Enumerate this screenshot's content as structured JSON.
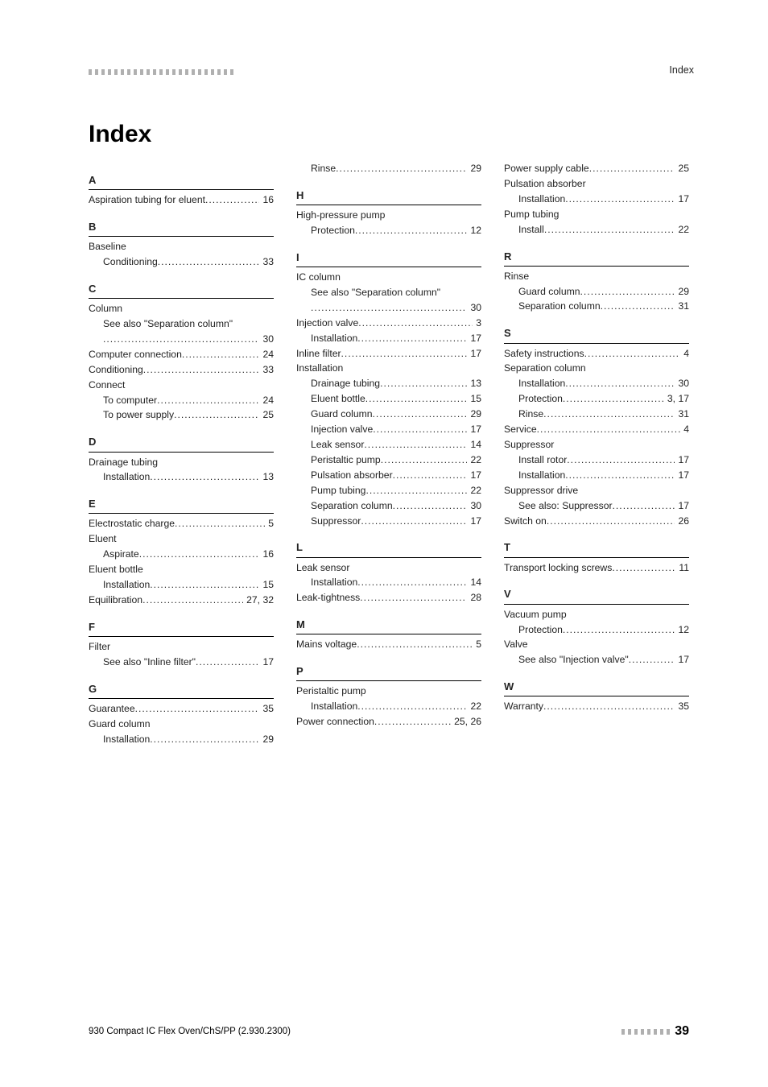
{
  "header_label": "Index",
  "title": "Index",
  "footer_left": "930 Compact IC Flex Oven/ChS/PP (2.930.2300)",
  "footer_page": "39",
  "columns": [
    [
      {
        "type": "letter",
        "text": "A"
      },
      {
        "type": "entry",
        "label": "Aspiration tubing for eluent",
        "page": "16"
      },
      {
        "type": "letter",
        "text": "B"
      },
      {
        "type": "entry",
        "label": "Baseline",
        "page": ""
      },
      {
        "type": "entry",
        "sub": true,
        "label": "Conditioning",
        "page": "33"
      },
      {
        "type": "letter",
        "text": "C"
      },
      {
        "type": "entry",
        "label": "Column",
        "page": ""
      },
      {
        "type": "entry",
        "sub": true,
        "label": "See also \"Separation column\"",
        "page": ""
      },
      {
        "type": "entry",
        "sub": true,
        "label": "",
        "page": "30"
      },
      {
        "type": "entry",
        "label": "Computer connection",
        "page": "24"
      },
      {
        "type": "entry",
        "label": "Conditioning",
        "page": "33"
      },
      {
        "type": "entry",
        "label": "Connect",
        "page": ""
      },
      {
        "type": "entry",
        "sub": true,
        "label": "To computer",
        "page": "24"
      },
      {
        "type": "entry",
        "sub": true,
        "label": "To power supply",
        "page": "25"
      },
      {
        "type": "letter",
        "text": "D"
      },
      {
        "type": "entry",
        "label": "Drainage tubing",
        "page": ""
      },
      {
        "type": "entry",
        "sub": true,
        "label": "Installation",
        "page": "13"
      },
      {
        "type": "letter",
        "text": "E"
      },
      {
        "type": "entry",
        "label": "Electrostatic charge",
        "page": "5"
      },
      {
        "type": "entry",
        "label": "Eluent",
        "page": ""
      },
      {
        "type": "entry",
        "sub": true,
        "label": "Aspirate",
        "page": "16"
      },
      {
        "type": "entry",
        "label": "Eluent bottle",
        "page": ""
      },
      {
        "type": "entry",
        "sub": true,
        "label": "Installation",
        "page": "15"
      },
      {
        "type": "entry",
        "label": "Equilibration",
        "page": "27, 32"
      },
      {
        "type": "letter",
        "text": "F"
      },
      {
        "type": "entry",
        "label": "Filter",
        "page": ""
      },
      {
        "type": "entry",
        "sub": true,
        "label": "See also \"Inline filter\"",
        "page": "17"
      },
      {
        "type": "letter",
        "text": "G"
      },
      {
        "type": "entry",
        "label": "Guarantee",
        "page": "35"
      },
      {
        "type": "entry",
        "label": "Guard column",
        "page": ""
      },
      {
        "type": "entry",
        "sub": true,
        "label": "Installation",
        "page": "29"
      }
    ],
    [
      {
        "type": "entry",
        "sub": true,
        "label": "Rinse",
        "page": "29"
      },
      {
        "type": "letter",
        "text": "H"
      },
      {
        "type": "entry",
        "label": "High-pressure pump",
        "page": ""
      },
      {
        "type": "entry",
        "sub": true,
        "label": "Protection",
        "page": "12"
      },
      {
        "type": "letter",
        "text": "I"
      },
      {
        "type": "entry",
        "label": "IC column",
        "page": ""
      },
      {
        "type": "entry",
        "sub": true,
        "label": "See also \"Separation column\"",
        "page": ""
      },
      {
        "type": "entry",
        "sub": true,
        "label": "",
        "page": "30"
      },
      {
        "type": "entry",
        "label": "Injection valve",
        "page": "3"
      },
      {
        "type": "entry",
        "sub": true,
        "label": "Installation",
        "page": "17"
      },
      {
        "type": "entry",
        "label": "Inline filter",
        "page": "17"
      },
      {
        "type": "entry",
        "label": "Installation",
        "page": ""
      },
      {
        "type": "entry",
        "sub": true,
        "label": "Drainage tubing",
        "page": "13"
      },
      {
        "type": "entry",
        "sub": true,
        "label": "Eluent bottle",
        "page": "15"
      },
      {
        "type": "entry",
        "sub": true,
        "label": "Guard column",
        "page": "29"
      },
      {
        "type": "entry",
        "sub": true,
        "label": "Injection valve",
        "page": "17"
      },
      {
        "type": "entry",
        "sub": true,
        "label": "Leak sensor",
        "page": "14"
      },
      {
        "type": "entry",
        "sub": true,
        "label": "Peristaltic pump",
        "page": "22"
      },
      {
        "type": "entry",
        "sub": true,
        "label": "Pulsation absorber",
        "page": "17"
      },
      {
        "type": "entry",
        "sub": true,
        "label": "Pump tubing",
        "page": "22"
      },
      {
        "type": "entry",
        "sub": true,
        "label": "Separation column",
        "page": "30"
      },
      {
        "type": "entry",
        "sub": true,
        "label": "Suppressor",
        "page": "17"
      },
      {
        "type": "letter",
        "text": "L"
      },
      {
        "type": "entry",
        "label": "Leak sensor",
        "page": ""
      },
      {
        "type": "entry",
        "sub": true,
        "label": "Installation",
        "page": "14"
      },
      {
        "type": "entry",
        "label": "Leak-tightness",
        "page": "28"
      },
      {
        "type": "letter",
        "text": "M"
      },
      {
        "type": "entry",
        "label": "Mains voltage",
        "page": "5"
      },
      {
        "type": "letter",
        "text": "P"
      },
      {
        "type": "entry",
        "label": "Peristaltic pump",
        "page": ""
      },
      {
        "type": "entry",
        "sub": true,
        "label": "Installation",
        "page": "22"
      },
      {
        "type": "entry",
        "label": "Power connection",
        "page": "25, 26"
      }
    ],
    [
      {
        "type": "entry",
        "label": "Power supply cable",
        "page": "25"
      },
      {
        "type": "entry",
        "label": "Pulsation absorber",
        "page": ""
      },
      {
        "type": "entry",
        "sub": true,
        "label": "Installation",
        "page": "17"
      },
      {
        "type": "entry",
        "label": "Pump tubing",
        "page": ""
      },
      {
        "type": "entry",
        "sub": true,
        "label": "Install",
        "page": "22"
      },
      {
        "type": "letter",
        "text": "R"
      },
      {
        "type": "entry",
        "label": "Rinse",
        "page": ""
      },
      {
        "type": "entry",
        "sub": true,
        "label": "Guard column",
        "page": "29"
      },
      {
        "type": "entry",
        "sub": true,
        "label": "Separation column",
        "page": "31"
      },
      {
        "type": "letter",
        "text": "S"
      },
      {
        "type": "entry",
        "label": "Safety instructions",
        "page": "4"
      },
      {
        "type": "entry",
        "label": "Separation column",
        "page": ""
      },
      {
        "type": "entry",
        "sub": true,
        "label": "Installation",
        "page": "30"
      },
      {
        "type": "entry",
        "sub": true,
        "label": "Protection",
        "page": "3, 17"
      },
      {
        "type": "entry",
        "sub": true,
        "label": "Rinse",
        "page": "31"
      },
      {
        "type": "entry",
        "label": "Service",
        "page": "4"
      },
      {
        "type": "entry",
        "label": "Suppressor",
        "page": ""
      },
      {
        "type": "entry",
        "sub": true,
        "label": "Install rotor",
        "page": "17"
      },
      {
        "type": "entry",
        "sub": true,
        "label": "Installation",
        "page": "17"
      },
      {
        "type": "entry",
        "label": "Suppressor drive",
        "page": ""
      },
      {
        "type": "entry",
        "sub": true,
        "label": "See also: Suppressor",
        "page": "17"
      },
      {
        "type": "entry",
        "label": "Switch on",
        "page": "26"
      },
      {
        "type": "letter",
        "text": "T"
      },
      {
        "type": "entry",
        "label": "Transport locking screws",
        "page": "11"
      },
      {
        "type": "letter",
        "text": "V"
      },
      {
        "type": "entry",
        "label": "Vacuum pump",
        "page": ""
      },
      {
        "type": "entry",
        "sub": true,
        "label": "Protection",
        "page": "12"
      },
      {
        "type": "entry",
        "label": "Valve",
        "page": ""
      },
      {
        "type": "entry",
        "sub": true,
        "label": "See also \"Injection valve\"",
        "page": "17"
      },
      {
        "type": "letter",
        "text": "W"
      },
      {
        "type": "entry",
        "label": "Warranty",
        "page": "35"
      }
    ]
  ]
}
